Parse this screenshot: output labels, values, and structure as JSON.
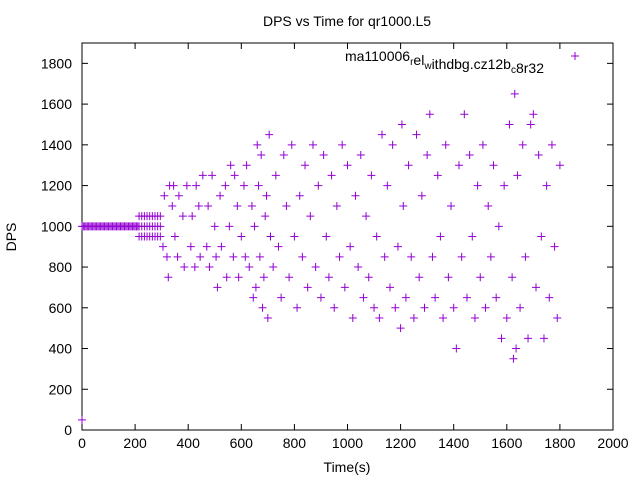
{
  "chart_data": {
    "type": "scatter",
    "title": "DPS vs Time for qr1000.L5",
    "xlabel": "Time(s)",
    "ylabel": "DPS",
    "xlim": [
      0,
      2000
    ],
    "ylim": [
      0,
      1900
    ],
    "xticks": [
      0,
      200,
      400,
      600,
      800,
      1000,
      1200,
      1400,
      1600,
      1800,
      2000
    ],
    "yticks": [
      0,
      200,
      400,
      600,
      800,
      1000,
      1200,
      1400,
      1600,
      1800
    ],
    "grid": false,
    "marker": "plus",
    "series": [
      {
        "name": "ma110006_rel_withdbg.cz12b_c8r32",
        "color": "#9400d3",
        "points": [
          [
            0,
            50
          ],
          [
            0,
            1000
          ],
          [
            5,
            1000
          ],
          [
            10,
            1000
          ],
          [
            15,
            1000
          ],
          [
            20,
            1000
          ],
          [
            25,
            1000
          ],
          [
            30,
            1000
          ],
          [
            35,
            1000
          ],
          [
            40,
            1000
          ],
          [
            45,
            1000
          ],
          [
            50,
            1000
          ],
          [
            55,
            1000
          ],
          [
            60,
            1000
          ],
          [
            65,
            1000
          ],
          [
            70,
            1000
          ],
          [
            75,
            1000
          ],
          [
            80,
            1000
          ],
          [
            85,
            1000
          ],
          [
            90,
            1000
          ],
          [
            95,
            1000
          ],
          [
            100,
            1000
          ],
          [
            105,
            1000
          ],
          [
            110,
            1000
          ],
          [
            115,
            1000
          ],
          [
            120,
            1000
          ],
          [
            125,
            1000
          ],
          [
            130,
            1000
          ],
          [
            135,
            1000
          ],
          [
            140,
            1000
          ],
          [
            145,
            1000
          ],
          [
            150,
            1000
          ],
          [
            155,
            1000
          ],
          [
            160,
            1000
          ],
          [
            165,
            1000
          ],
          [
            170,
            1000
          ],
          [
            175,
            1000
          ],
          [
            180,
            1000
          ],
          [
            185,
            1000
          ],
          [
            190,
            1000
          ],
          [
            195,
            1000
          ],
          [
            200,
            1000
          ],
          [
            205,
            1000
          ],
          [
            210,
            1000
          ],
          [
            215,
            950
          ],
          [
            215,
            1000
          ],
          [
            215,
            1050
          ],
          [
            225,
            950
          ],
          [
            225,
            1000
          ],
          [
            225,
            1050
          ],
          [
            235,
            950
          ],
          [
            235,
            1000
          ],
          [
            235,
            1050
          ],
          [
            245,
            950
          ],
          [
            245,
            1000
          ],
          [
            245,
            1050
          ],
          [
            255,
            950
          ],
          [
            255,
            1000
          ],
          [
            255,
            1050
          ],
          [
            265,
            950
          ],
          [
            265,
            1000
          ],
          [
            265,
            1050
          ],
          [
            275,
            950
          ],
          [
            275,
            1000
          ],
          [
            275,
            1050
          ],
          [
            285,
            950
          ],
          [
            285,
            1000
          ],
          [
            285,
            1050
          ],
          [
            295,
            950
          ],
          [
            295,
            1000
          ],
          [
            295,
            1050
          ],
          [
            305,
            900
          ],
          [
            310,
            1150
          ],
          [
            320,
            850
          ],
          [
            325,
            750
          ],
          [
            330,
            1200
          ],
          [
            340,
            1100
          ],
          [
            345,
            1200
          ],
          [
            350,
            950
          ],
          [
            360,
            850
          ],
          [
            365,
            1150
          ],
          [
            380,
            1050
          ],
          [
            385,
            800
          ],
          [
            395,
            1200
          ],
          [
            410,
            900
          ],
          [
            415,
            1050
          ],
          [
            425,
            800
          ],
          [
            430,
            1200
          ],
          [
            440,
            1100
          ],
          [
            445,
            850
          ],
          [
            455,
            1250
          ],
          [
            470,
            900
          ],
          [
            475,
            1100
          ],
          [
            480,
            800
          ],
          [
            490,
            1250
          ],
          [
            500,
            1000
          ],
          [
            505,
            850
          ],
          [
            510,
            700
          ],
          [
            520,
            1150
          ],
          [
            525,
            900
          ],
          [
            540,
            1200
          ],
          [
            545,
            750
          ],
          [
            555,
            1000
          ],
          [
            560,
            1300
          ],
          [
            570,
            850
          ],
          [
            575,
            1250
          ],
          [
            585,
            1100
          ],
          [
            590,
            750
          ],
          [
            600,
            950
          ],
          [
            610,
            1200
          ],
          [
            615,
            850
          ],
          [
            620,
            1300
          ],
          [
            630,
            800
          ],
          [
            640,
            1100
          ],
          [
            645,
            650
          ],
          [
            650,
            1000
          ],
          [
            655,
            700
          ],
          [
            660,
            1400
          ],
          [
            665,
            1200
          ],
          [
            670,
            850
          ],
          [
            675,
            1350
          ],
          [
            680,
            600
          ],
          [
            685,
            750
          ],
          [
            690,
            1050
          ],
          [
            695,
            1150
          ],
          [
            700,
            550
          ],
          [
            705,
            1450
          ],
          [
            710,
            950
          ],
          [
            720,
            800
          ],
          [
            730,
            1250
          ],
          [
            740,
            900
          ],
          [
            750,
            650
          ],
          [
            760,
            1350
          ],
          [
            770,
            1100
          ],
          [
            780,
            750
          ],
          [
            790,
            1400
          ],
          [
            800,
            950
          ],
          [
            810,
            600
          ],
          [
            820,
            1150
          ],
          [
            830,
            850
          ],
          [
            840,
            1300
          ],
          [
            850,
            700
          ],
          [
            860,
            1050
          ],
          [
            870,
            1400
          ],
          [
            880,
            800
          ],
          [
            890,
            1200
          ],
          [
            900,
            650
          ],
          [
            910,
            1350
          ],
          [
            920,
            950
          ],
          [
            930,
            750
          ],
          [
            940,
            1250
          ],
          [
            950,
            600
          ],
          [
            960,
            1100
          ],
          [
            970,
            850
          ],
          [
            980,
            1400
          ],
          [
            990,
            700
          ],
          [
            1000,
            1300
          ],
          [
            1010,
            900
          ],
          [
            1020,
            550
          ],
          [
            1030,
            1150
          ],
          [
            1040,
            800
          ],
          [
            1050,
            1350
          ],
          [
            1060,
            650
          ],
          [
            1070,
            1050
          ],
          [
            1080,
            750
          ],
          [
            1090,
            1250
          ],
          [
            1100,
            600
          ],
          [
            1110,
            950
          ],
          [
            1120,
            550
          ],
          [
            1130,
            1450
          ],
          [
            1140,
            850
          ],
          [
            1150,
            1200
          ],
          [
            1160,
            700
          ],
          [
            1170,
            1400
          ],
          [
            1180,
            600
          ],
          [
            1190,
            900
          ],
          [
            1200,
            500
          ],
          [
            1205,
            1500
          ],
          [
            1210,
            1100
          ],
          [
            1220,
            650
          ],
          [
            1230,
            1300
          ],
          [
            1240,
            850
          ],
          [
            1250,
            550
          ],
          [
            1260,
            1450
          ],
          [
            1270,
            750
          ],
          [
            1280,
            1150
          ],
          [
            1290,
            600
          ],
          [
            1300,
            1350
          ],
          [
            1310,
            1550
          ],
          [
            1320,
            850
          ],
          [
            1330,
            650
          ],
          [
            1340,
            1250
          ],
          [
            1350,
            950
          ],
          [
            1360,
            550
          ],
          [
            1370,
            1400
          ],
          [
            1380,
            750
          ],
          [
            1390,
            1100
          ],
          [
            1400,
            600
          ],
          [
            1410,
            400
          ],
          [
            1420,
            1300
          ],
          [
            1430,
            850
          ],
          [
            1440,
            1550
          ],
          [
            1450,
            650
          ],
          [
            1460,
            1350
          ],
          [
            1470,
            950
          ],
          [
            1480,
            550
          ],
          [
            1490,
            1200
          ],
          [
            1500,
            750
          ],
          [
            1510,
            1400
          ],
          [
            1520,
            600
          ],
          [
            1530,
            1100
          ],
          [
            1540,
            850
          ],
          [
            1550,
            1300
          ],
          [
            1560,
            650
          ],
          [
            1570,
            1000
          ],
          [
            1580,
            450
          ],
          [
            1590,
            1200
          ],
          [
            1600,
            550
          ],
          [
            1610,
            1500
          ],
          [
            1620,
            750
          ],
          [
            1625,
            350
          ],
          [
            1630,
            1650
          ],
          [
            1635,
            400
          ],
          [
            1640,
            1250
          ],
          [
            1650,
            600
          ],
          [
            1660,
            1400
          ],
          [
            1670,
            850
          ],
          [
            1680,
            450
          ],
          [
            1690,
            1500
          ],
          [
            1700,
            1550
          ],
          [
            1710,
            700
          ],
          [
            1720,
            1350
          ],
          [
            1730,
            950
          ],
          [
            1740,
            450
          ],
          [
            1750,
            1200
          ],
          [
            1760,
            650
          ],
          [
            1770,
            1400
          ],
          [
            1780,
            900
          ],
          [
            1790,
            550
          ],
          [
            1800,
            1300
          ]
        ]
      }
    ]
  }
}
